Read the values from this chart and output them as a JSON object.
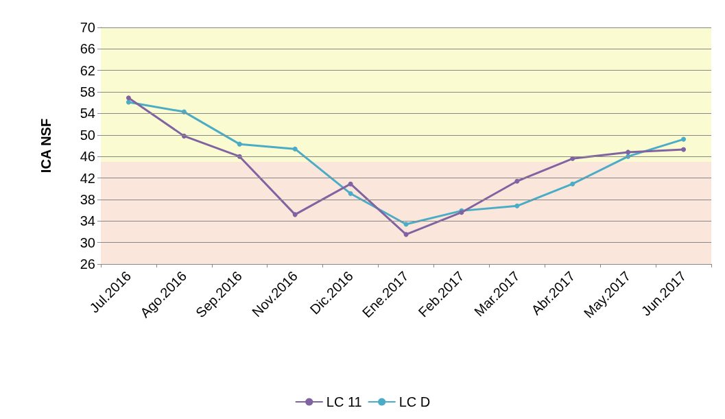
{
  "chart_data": {
    "type": "line",
    "ylabel": "ICA NSF",
    "categories": [
      "Jul.2016",
      "Ago.2016",
      "Sep.2016",
      "Nov.2016",
      "Dic.2016",
      "Ene.2017",
      "Feb.2017",
      "Mar.2017",
      "Abr.2017",
      "May.2017",
      "Jun.2017"
    ],
    "series": [
      {
        "name": "LC 11",
        "color": "#8064a2",
        "values": [
          56.9,
          49.8,
          46.0,
          35.2,
          40.9,
          31.5,
          35.6,
          41.4,
          45.6,
          46.8,
          47.3
        ]
      },
      {
        "name": "LC D",
        "color": "#4bacc6",
        "values": [
          56.1,
          54.3,
          48.3,
          47.4,
          39.1,
          33.4,
          35.9,
          36.8,
          40.9,
          46.0,
          49.2
        ]
      }
    ],
    "ylim": [
      26,
      70
    ],
    "yticks": [
      26,
      30,
      34,
      38,
      42,
      46,
      50,
      54,
      58,
      62,
      66,
      70
    ],
    "bands": [
      {
        "axis": "y",
        "from": 45,
        "to": 70,
        "color": "#fbfbd2"
      },
      {
        "axis": "y",
        "from": 26,
        "to": 45,
        "color": "#fbe6dc"
      }
    ],
    "grid": "y",
    "legend": "bottom",
    "marker": "circle",
    "line_style": "solid"
  }
}
